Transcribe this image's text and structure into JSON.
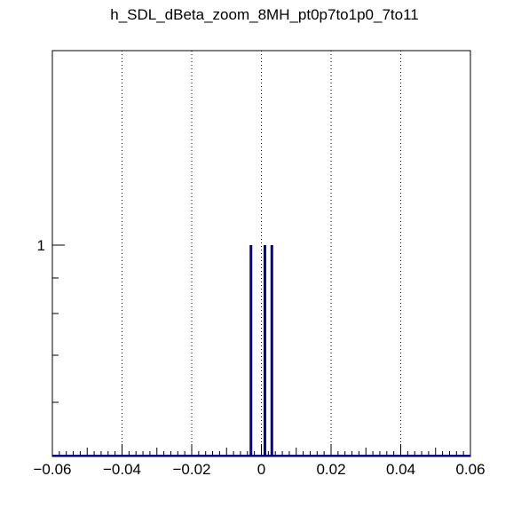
{
  "chart_data": {
    "type": "bar",
    "title": "h_SDL_dBeta_zoom_8MH_pt0p7to1p0_7to11",
    "xlabel": "",
    "ylabel": "",
    "xlim": [
      -0.06,
      0.06
    ],
    "y_scale": "log",
    "grid": "vertical dotted",
    "x_ticks": [
      -0.06,
      -0.04,
      -0.02,
      0,
      0.02,
      0.04,
      0.06
    ],
    "x_tick_labels": [
      "−0.06",
      "−0.04",
      "−0.02",
      "0",
      "0.02",
      "0.04",
      "0.06"
    ],
    "y_tick_label": "1",
    "color": "#000099",
    "bins": [
      {
        "x": -0.003,
        "count": 1
      },
      {
        "x": 0.001,
        "count": 1
      },
      {
        "x": 0.003,
        "count": 1
      }
    ]
  }
}
